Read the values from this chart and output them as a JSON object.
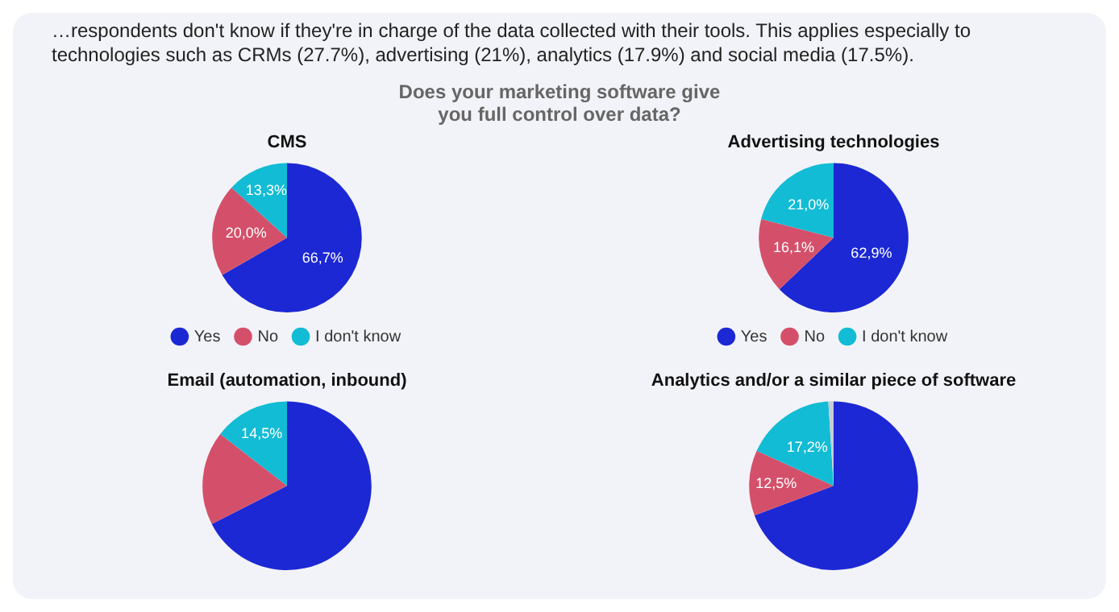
{
  "chart_data": [
    {
      "type": "other",
      "title": "Does your marketing software give you full control over data?",
      "annotations": [
        "…respondents don't know if they're in charge of the data collected with their tools. This applies especially to technologies such as CRMs (27.7%), advertising (21%), analytics (17.9%) and social media (17.5%)."
      ]
    },
    {
      "type": "pie",
      "title": "CMS",
      "categories": [
        "Yes",
        "No",
        "I don't know"
      ],
      "values": [
        66.7,
        20.0,
        13.3
      ],
      "colors": [
        "#1c28d4",
        "#d4506a",
        "#12bcd4"
      ],
      "value_labels": [
        "66,7%",
        "20,0%",
        "13,3%"
      ],
      "legend": "bottom"
    },
    {
      "type": "pie",
      "title": "Advertising technologies",
      "categories": [
        "Yes",
        "No",
        "I don't know"
      ],
      "values": [
        62.9,
        16.1,
        21.0
      ],
      "colors": [
        "#1c28d4",
        "#d4506a",
        "#12bcd4"
      ],
      "value_labels": [
        "62,9%",
        "16,1%",
        "21,0%"
      ],
      "legend": "bottom"
    },
    {
      "type": "pie",
      "title": "Email (automation, inbound)",
      "categories": [
        null,
        null,
        null
      ],
      "values": [
        67.5,
        18.0,
        14.5
      ],
      "colors": [
        "#1c28d4",
        "#d4506a",
        "#12bcd4"
      ],
      "value_labels": [
        null,
        null,
        "14,5%"
      ]
    },
    {
      "type": "pie",
      "title": "Analytics and/or a similar piece of software",
      "categories": [
        null,
        null,
        null,
        null
      ],
      "values": [
        69.3,
        12.5,
        17.2,
        1.0
      ],
      "colors": [
        "#1c28d4",
        "#d4506a",
        "#12bcd4",
        "#c8ccd4"
      ],
      "value_labels": [
        null,
        "12,5%",
        "17,2%",
        null
      ]
    }
  ]
}
